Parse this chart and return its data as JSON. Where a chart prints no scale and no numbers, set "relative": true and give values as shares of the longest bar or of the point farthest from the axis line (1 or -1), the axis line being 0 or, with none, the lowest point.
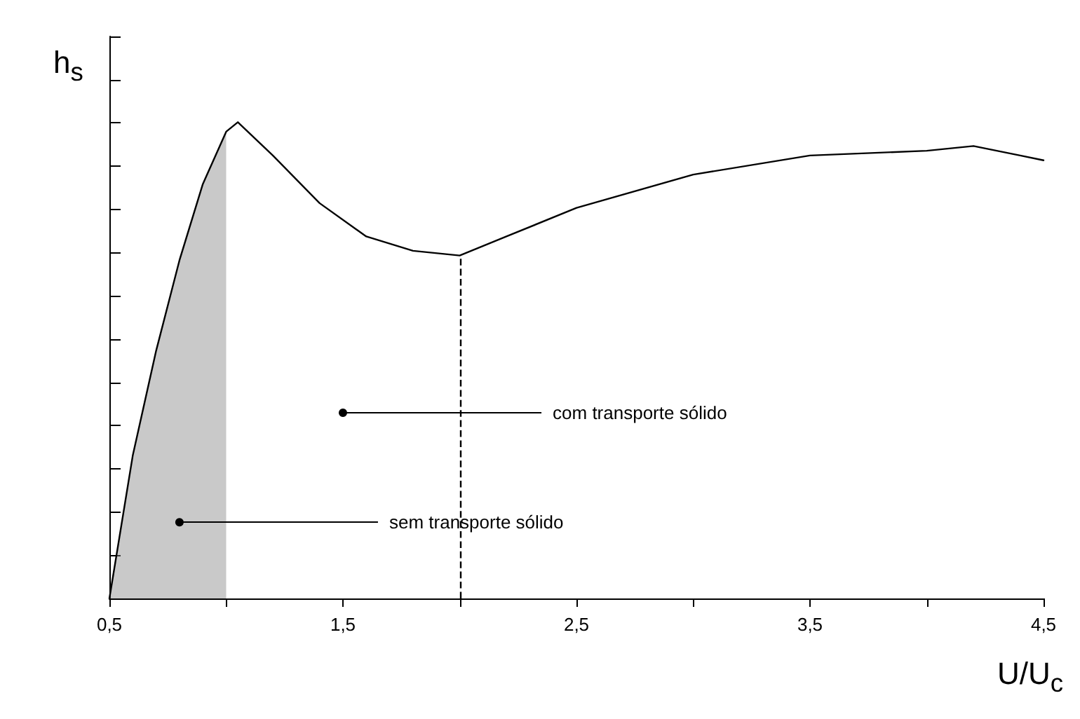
{
  "chart_data": {
    "type": "line",
    "relative": true,
    "xlabel": "U/U$_{c}$",
    "ylabel": "h$_{s}$",
    "tick_labels": "x",
    "grid": false,
    "marker": "none",
    "line_style": "solid",
    "xlim": [
      0.5,
      4.5
    ],
    "xticks": [
      {
        "value": 0.5,
        "label": "0,5"
      },
      {
        "value": 1,
        "label": null
      },
      {
        "value": 1.5,
        "label": "1,5"
      },
      {
        "value": 2,
        "label": null
      },
      {
        "value": 2.5,
        "label": "2,5"
      },
      {
        "value": 3,
        "label": null
      },
      {
        "value": 3.5,
        "label": "3,5"
      },
      {
        "value": 4,
        "label": null
      },
      {
        "value": 4.5,
        "label": "4,5"
      }
    ],
    "series": [
      {
        "color": "#000000",
        "x": [
          0.5,
          0.6,
          0.7,
          0.8,
          0.9,
          1.0,
          1.05,
          1.2,
          1.4,
          1.6,
          1.8,
          2.0,
          2.2,
          2.5,
          3.0,
          3.5,
          4.0,
          4.2,
          4.4,
          4.5
        ],
        "values": [
          0,
          0.3,
          0.52,
          0.71,
          0.87,
          0.98,
          1,
          0.93,
          0.83,
          0.76,
          0.73,
          0.72,
          0.76,
          0.82,
          0.89,
          0.93,
          0.94,
          0.95,
          0.93,
          0.92
        ]
      },
      {
        "type": "area",
        "color": "#888888",
        "x": [
          0.5,
          0.6,
          0.7,
          0.8,
          0.9,
          1.0
        ],
        "values": [
          0,
          0.3,
          0.52,
          0.71,
          0.87,
          0.98
        ]
      }
    ],
    "ref_lines": [
      {
        "axis": "x",
        "value": 2.0,
        "line_style": "dashed",
        "color": "#000000"
      }
    ],
    "annotations": [
      {
        "text": "com transporte sólido",
        "x": 1.5,
        "y": 0.39
      },
      {
        "text": "sem transporte sólido",
        "x": 0.8,
        "y": 0.16
      }
    ]
  }
}
